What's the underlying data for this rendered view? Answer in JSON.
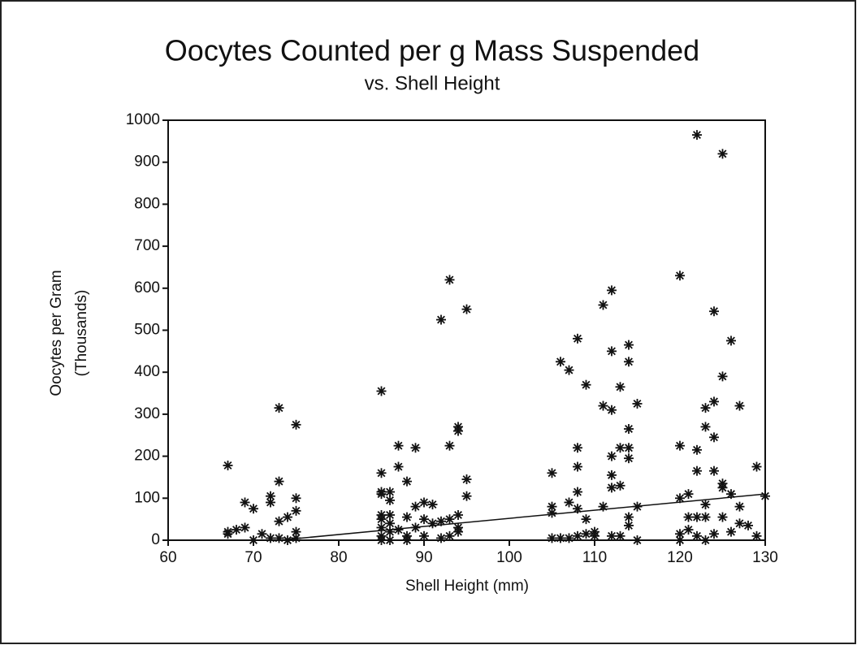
{
  "chart_data": {
    "type": "scatter",
    "title": "Oocytes Counted per g Mass Suspended",
    "subtitle": "vs. Shell Height",
    "x_label": "Shell Height (mm)",
    "y_label": [
      "Oocytes per Gram",
      "(Thousands)"
    ],
    "xlim": [
      60,
      130
    ],
    "xticks": [
      60,
      70,
      80,
      90,
      100,
      110,
      120,
      130
    ],
    "ylim": [
      0,
      1000
    ],
    "yticks": [
      0,
      100,
      200,
      300,
      400,
      500,
      600,
      700,
      800,
      900,
      1000
    ],
    "color": "#111111",
    "series": [
      {
        "x": [
          67,
          67,
          67,
          68,
          69,
          69,
          70,
          70,
          71,
          72,
          72,
          72,
          73,
          73,
          73,
          73,
          74,
          74,
          75,
          75,
          75,
          75,
          75,
          85,
          85,
          85,
          85,
          85,
          85,
          85,
          85,
          85,
          86,
          86,
          86,
          86,
          86,
          86,
          87,
          87,
          87,
          88,
          88,
          88,
          88,
          89,
          89,
          89,
          90,
          90,
          90,
          91,
          91,
          92,
          92,
          92,
          93,
          93,
          93,
          93,
          94,
          94,
          94,
          94,
          94,
          95,
          95,
          95,
          105,
          105,
          105,
          105,
          106,
          106,
          107,
          107,
          107,
          108,
          108,
          108,
          108,
          108,
          108,
          109,
          109,
          109,
          110,
          110,
          111,
          111,
          111,
          112,
          112,
          112,
          112,
          112,
          112,
          112,
          113,
          113,
          113,
          113,
          114,
          114,
          114,
          114,
          114,
          114,
          114,
          115,
          115,
          115,
          120,
          120,
          120,
          120,
          120,
          121,
          121,
          121,
          122,
          122,
          122,
          122,
          122,
          123,
          123,
          123,
          123,
          123,
          124,
          124,
          124,
          124,
          124,
          125,
          125,
          125,
          125,
          125,
          126,
          126,
          126,
          127,
          127,
          127,
          128,
          129,
          129,
          130
        ],
        "values": [
          178,
          20,
          15,
          25,
          30,
          90,
          75,
          0,
          15,
          105,
          90,
          5,
          315,
          140,
          45,
          5,
          55,
          0,
          275,
          100,
          70,
          20,
          5,
          355,
          160,
          115,
          110,
          60,
          50,
          30,
          10,
          0,
          115,
          95,
          60,
          40,
          20,
          0,
          225,
          175,
          25,
          140,
          55,
          10,
          0,
          220,
          80,
          30,
          90,
          50,
          10,
          85,
          40,
          525,
          45,
          5,
          620,
          225,
          50,
          10,
          270,
          260,
          60,
          30,
          20,
          550,
          145,
          105,
          160,
          80,
          65,
          5,
          425,
          5,
          405,
          90,
          5,
          480,
          220,
          175,
          115,
          75,
          10,
          370,
          50,
          15,
          20,
          10,
          560,
          320,
          80,
          595,
          450,
          310,
          200,
          155,
          125,
          10,
          365,
          220,
          130,
          10,
          465,
          425,
          265,
          220,
          195,
          55,
          35,
          325,
          80,
          0,
          630,
          225,
          100,
          15,
          0,
          110,
          55,
          25,
          965,
          215,
          165,
          55,
          10,
          315,
          270,
          85,
          55,
          0,
          545,
          330,
          245,
          165,
          15,
          920,
          390,
          135,
          125,
          55,
          475,
          110,
          20,
          320,
          80,
          40,
          35,
          175,
          10,
          105
        ]
      }
    ],
    "trend_line": {
      "x": [
        60,
        73,
        130
      ],
      "values": [
        0,
        0,
        110
      ]
    }
  }
}
